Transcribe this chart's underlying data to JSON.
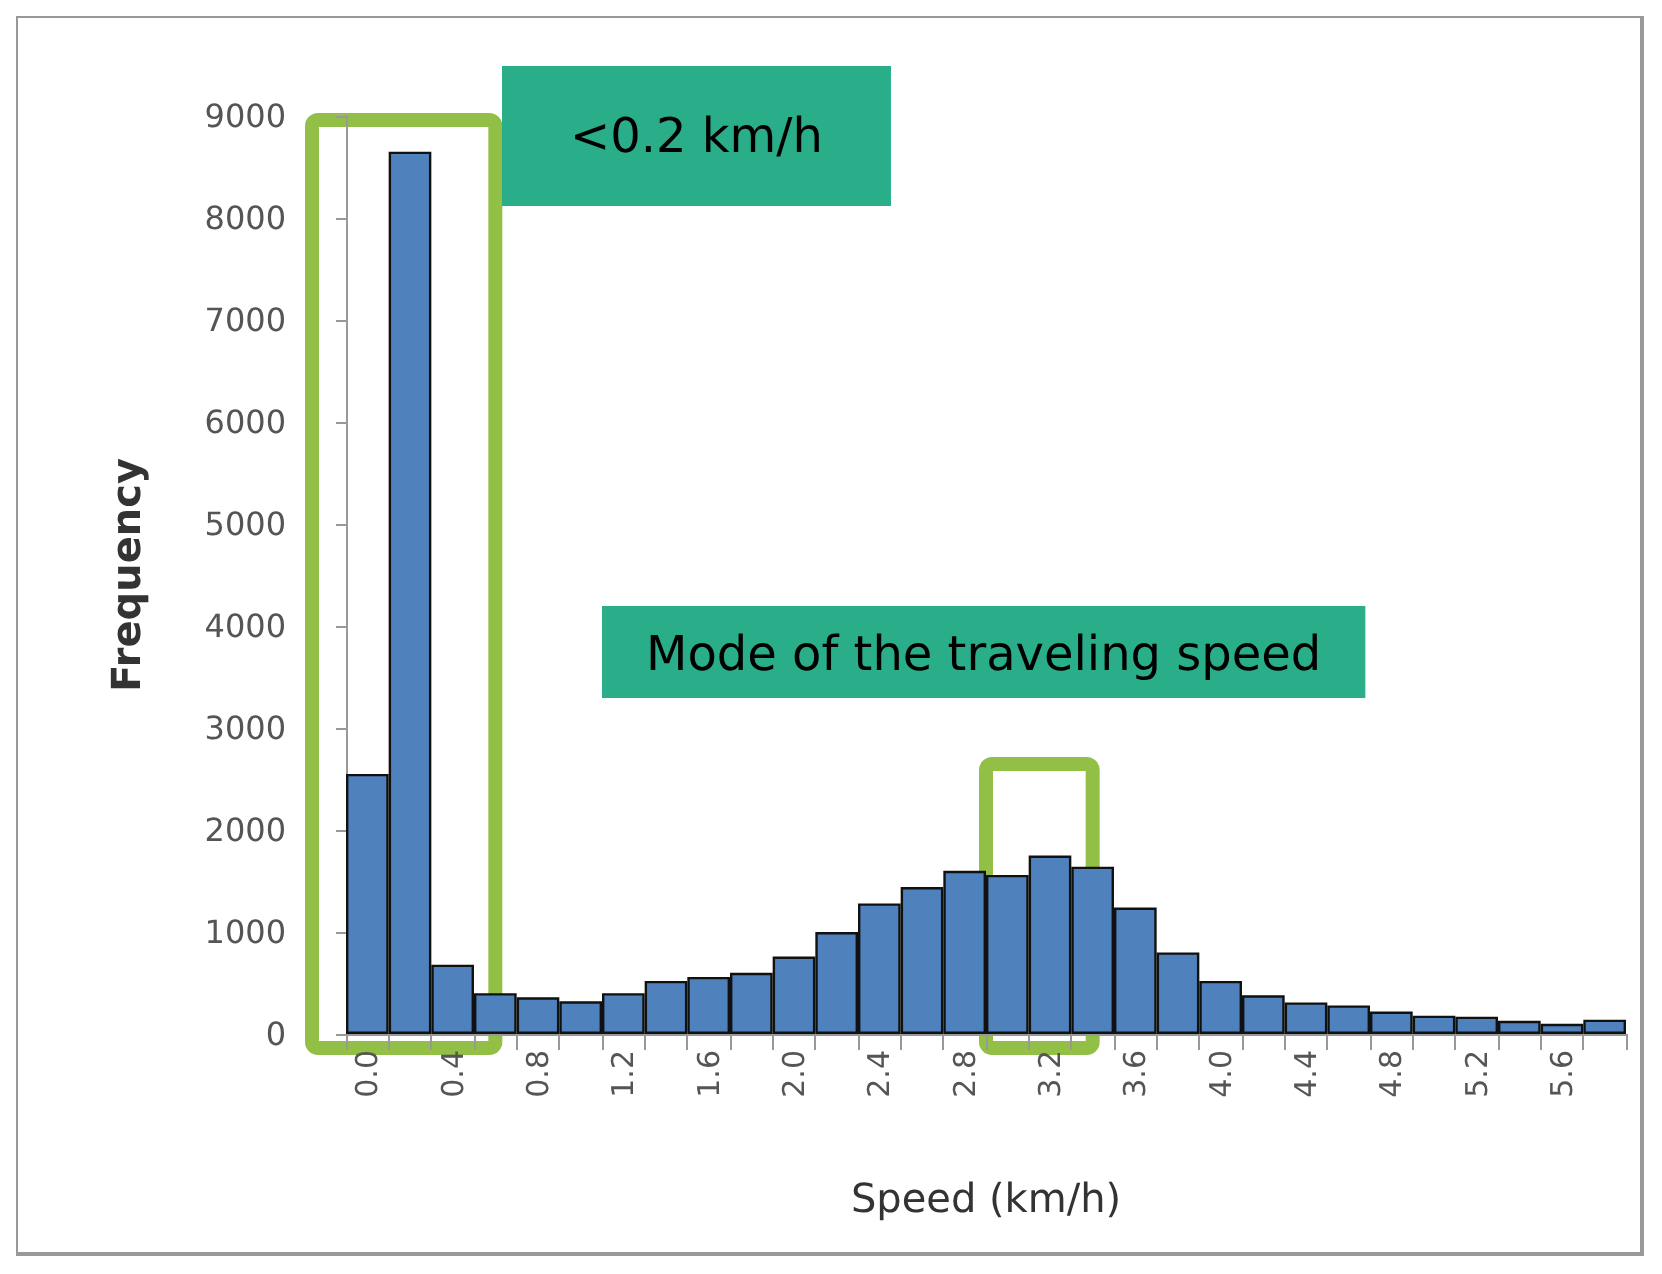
{
  "chart_data": {
    "type": "bar",
    "xlabel": "Speed (km/h)",
    "ylabel": "Frequency",
    "categories": [
      "0.0",
      null,
      "0.4",
      null,
      "0.8",
      null,
      "1.2",
      null,
      "1.6",
      null,
      "2.0",
      null,
      "2.4",
      null,
      "2.8",
      null,
      "3.2",
      null,
      "3.6",
      null,
      "4.0",
      null,
      "4.4",
      null,
      "4.8",
      null,
      "5.2",
      null,
      "5.6",
      null
    ],
    "values": [
      2550,
      8650,
      680,
      400,
      360,
      320,
      400,
      520,
      560,
      600,
      760,
      1000,
      1280,
      1440,
      1600,
      1560,
      1750,
      1640,
      1240,
      800,
      520,
      380,
      310,
      280,
      220,
      180,
      170,
      130,
      100,
      140
    ],
    "color": "#4f81bd",
    "ylim": [
      0,
      9000
    ],
    "yticks": [
      0,
      1000,
      2000,
      3000,
      4000,
      5000,
      6000,
      7000,
      8000,
      9000
    ],
    "grid": false,
    "annotations": [
      "<0.2 km/h",
      "Mode of the traveling speed"
    ]
  }
}
